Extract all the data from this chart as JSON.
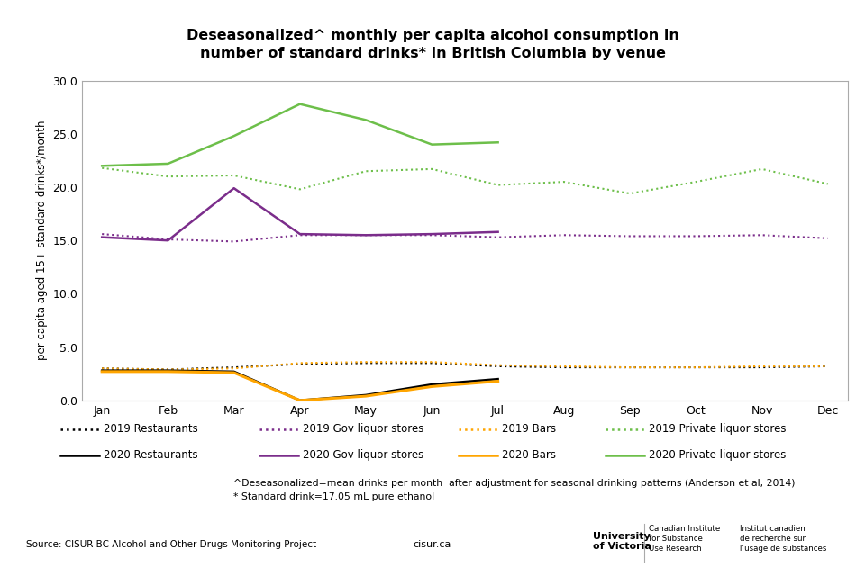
{
  "title_line1": "Deseasonalized^ monthly per capita alcohol consumption in",
  "title_line2": "number of standard drinks* in British Columbia by venue",
  "ylabel": "per capita aged 15+ standard drinks*/month",
  "months": [
    "Jan",
    "Feb",
    "Mar",
    "Apr",
    "May",
    "Jun",
    "Jul",
    "Aug",
    "Sep",
    "Oct",
    "Nov",
    "Dec"
  ],
  "ylim": [
    0,
    30
  ],
  "yticks": [
    0.0,
    5.0,
    10.0,
    15.0,
    20.0,
    25.0,
    30.0
  ],
  "series_2019_restaurants": [
    3.0,
    2.9,
    3.1,
    3.4,
    3.5,
    3.5,
    3.2,
    3.1,
    3.1,
    3.1,
    3.1,
    3.2
  ],
  "series_2019_gov_liquor": [
    15.6,
    15.1,
    14.9,
    15.5,
    15.5,
    15.5,
    15.3,
    15.5,
    15.4,
    15.4,
    15.5,
    15.2
  ],
  "series_2019_bars": [
    3.0,
    2.9,
    3.0,
    3.5,
    3.6,
    3.6,
    3.3,
    3.2,
    3.1,
    3.1,
    3.2,
    3.2
  ],
  "series_2019_private": [
    21.8,
    21.0,
    21.1,
    19.8,
    21.5,
    21.7,
    20.2,
    20.5,
    19.4,
    20.5,
    21.7,
    20.3
  ],
  "series_2020_x": [
    0,
    1,
    2,
    3,
    4,
    5,
    6
  ],
  "series_2020_restaurants": [
    2.8,
    2.8,
    2.7,
    0.0,
    0.5,
    1.5,
    2.0
  ],
  "series_2020_gov_liquor": [
    15.3,
    15.0,
    19.9,
    15.6,
    15.5,
    15.6,
    15.8
  ],
  "series_2020_bars": [
    2.7,
    2.7,
    2.6,
    0.0,
    0.4,
    1.3,
    1.8
  ],
  "series_2020_private": [
    22.0,
    22.2,
    24.8,
    27.8,
    26.3,
    24.0,
    24.2
  ],
  "color_restaurants": "#000000",
  "color_gov_liquor": "#7B2D8B",
  "color_bars": "#FFA500",
  "color_private": "#6DBF4A",
  "legend_items_row1": [
    {
      "label": "2019 Restaurants",
      "color": "#000000",
      "ls": "dotted"
    },
    {
      "label": "2019 Gov liquor stores",
      "color": "#7B2D8B",
      "ls": "dotted"
    },
    {
      "label": "2019 Bars",
      "color": "#FFA500",
      "ls": "dotted"
    },
    {
      "label": "2019 Private liquor stores",
      "color": "#6DBF4A",
      "ls": "dotted"
    }
  ],
  "legend_items_row2": [
    {
      "label": "2020 Restaurants",
      "color": "#000000",
      "ls": "solid"
    },
    {
      "label": "2020 Gov liquor stores",
      "color": "#7B2D8B",
      "ls": "solid"
    },
    {
      "label": "2020 Bars",
      "color": "#FFA500",
      "ls": "solid"
    },
    {
      "label": "2020 Private liquor stores",
      "color": "#6DBF4A",
      "ls": "solid"
    }
  ],
  "footnote1": "^Deseasonalized=mean drinks per month  after adjustment for seasonal drinking patterns (Anderson et al, 2014)",
  "footnote2": "* Standard drink=17.05 mL pure ethanol",
  "source": "Source: CISUR BC Alcohol and Other Drugs Monitoring Project",
  "website": "cisur.ca",
  "uvic_text": "University\nof Victoria",
  "canadian_inst": "Canadian Institute\nfor Substance\nUse Research",
  "french_inst": "Institut canadien\nde recherche sur\nl’usage de substances"
}
